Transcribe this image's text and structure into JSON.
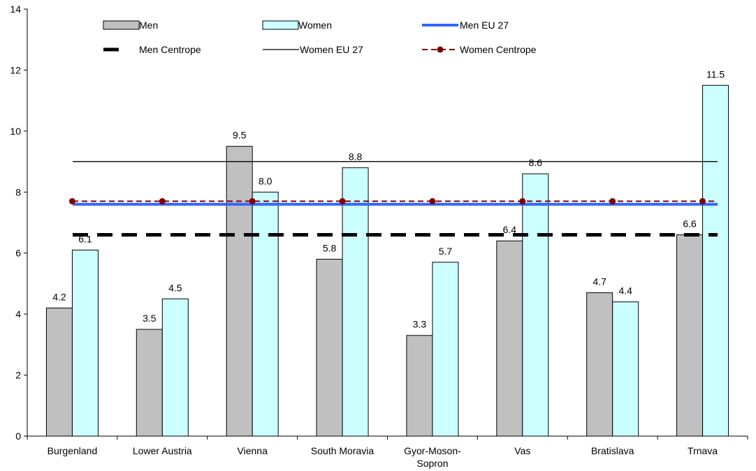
{
  "chart_data": {
    "type": "bar",
    "title": "",
    "xlabel": "",
    "ylabel": "",
    "ylim": [
      0,
      14
    ],
    "yticks": [
      0,
      2,
      4,
      6,
      8,
      10,
      12,
      14
    ],
    "grid": false,
    "legend_position": "top",
    "categories": [
      [
        "Burgenland"
      ],
      [
        "Lower Austria"
      ],
      [
        "Vienna"
      ],
      [
        "South Moravia"
      ],
      [
        "Gyor-Moson-",
        "Sopron"
      ],
      [
        "Vas"
      ],
      [
        "Bratislava"
      ],
      [
        "Trnava"
      ]
    ],
    "series": [
      {
        "name": "Men",
        "kind": "bar",
        "color": "#c0c0c0",
        "values": [
          4.2,
          3.5,
          9.5,
          5.8,
          3.3,
          6.4,
          4.7,
          6.6
        ],
        "labels": [
          "4.2",
          "3.5",
          "9.5",
          "5.8",
          "3.3",
          "6.4",
          "4.7",
          "6.6"
        ]
      },
      {
        "name": "Women",
        "kind": "bar",
        "color": "#ccffff",
        "values": [
          6.1,
          4.5,
          8.0,
          8.8,
          5.7,
          8.6,
          4.4,
          11.5
        ],
        "labels": [
          "6.1",
          "4.5",
          "8.0",
          "8.8",
          "5.7",
          "8.6",
          "4.4",
          "11.5"
        ]
      }
    ],
    "reference_lines": [
      {
        "name": "Men EU 27",
        "value": 7.6,
        "color": "#3366ff",
        "style": "solid-thick"
      },
      {
        "name": "Men Centrope",
        "value": 6.6,
        "color": "#000000",
        "style": "dashed-thick"
      },
      {
        "name": "Women EU 27",
        "value": 9.0,
        "color": "#000000",
        "style": "solid-thin"
      },
      {
        "name": "Women Centrope",
        "value": 7.7,
        "color": "#800000",
        "style": "dashed-markers"
      }
    ]
  }
}
